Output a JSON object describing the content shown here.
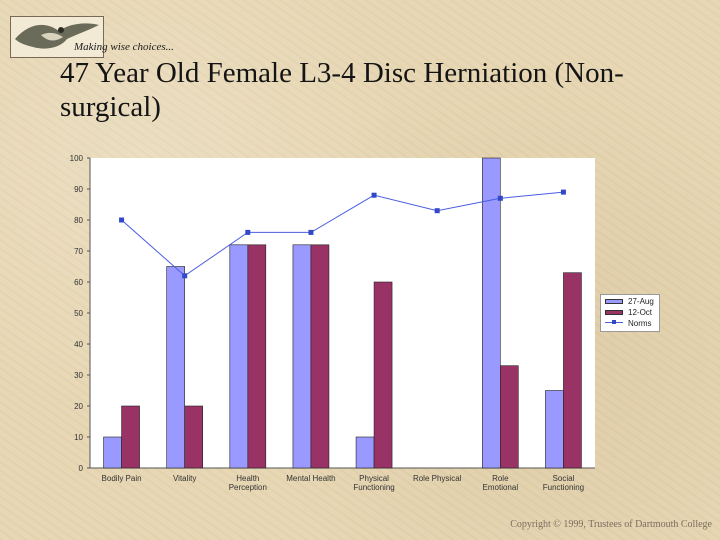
{
  "header": {
    "tagline": "Making wise choices...",
    "title": "47 Year Old Female L3-4 Disc Herniation (Non-surgical)"
  },
  "footer": {
    "copyright": "Copyright © 1999, Trustees of Dartmouth College"
  },
  "colors": {
    "series_1": "#9999ff",
    "series_2": "#993366",
    "norms": "#4a5ee0",
    "plot_bg": "#ffffff",
    "accent": "#3348c8"
  },
  "logo": {
    "icon": "bird-logo-icon"
  },
  "chart_data": {
    "type": "bar",
    "title": "",
    "xlabel": "",
    "ylabel": "",
    "ylim": [
      0,
      100
    ],
    "yticks": [
      0,
      10,
      20,
      30,
      40,
      50,
      60,
      70,
      80,
      90,
      100
    ],
    "grid": false,
    "legend_position": "right",
    "categories": [
      [
        "Bodily Pain"
      ],
      [
        "Vitality"
      ],
      [
        "Health",
        "Perception"
      ],
      [
        "Mental Health"
      ],
      [
        "Physical",
        "Functioning"
      ],
      [
        "Role Physical"
      ],
      [
        "Role",
        "Emotional"
      ],
      [
        "Social",
        "Functioning"
      ]
    ],
    "series": [
      {
        "name": "27-Aug",
        "values": [
          10,
          65,
          72,
          72,
          10,
          0,
          100,
          25
        ]
      },
      {
        "name": "12-Oct",
        "values": [
          20,
          20,
          72,
          72,
          60,
          0,
          33,
          63
        ]
      }
    ],
    "line": {
      "name": "Norms",
      "values": [
        80,
        62,
        76,
        76,
        88,
        83,
        87,
        89
      ]
    }
  }
}
